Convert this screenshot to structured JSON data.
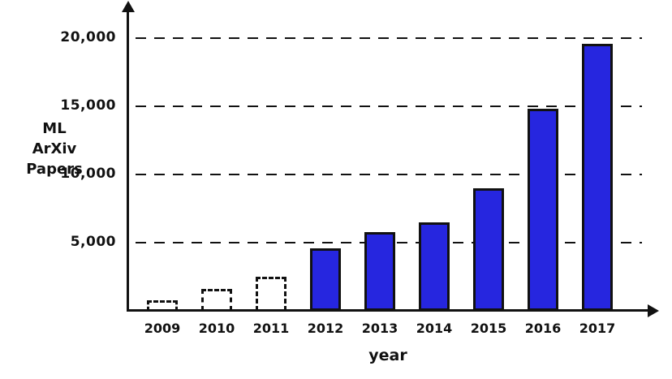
{
  "chart_data": {
    "type": "bar",
    "xlabel": "year",
    "ylabel": "ML ArXiv Papers",
    "ylabel_lines": [
      "ML",
      "ArXiv",
      "Papers"
    ],
    "categories": [
      "2009",
      "2010",
      "2011",
      "2012",
      "2013",
      "2014",
      "2015",
      "2016",
      "2017"
    ],
    "values": [
      800,
      1600,
      2500,
      4600,
      5800,
      6500,
      9000,
      14800,
      19600
    ],
    "bar_styles": [
      "dashed",
      "dashed",
      "dashed",
      "solid",
      "solid",
      "solid",
      "solid",
      "solid",
      "solid"
    ],
    "yticks": [
      {
        "label": "5,000",
        "value": 5000
      },
      {
        "label": "10,000",
        "value": 10000
      },
      {
        "label": "15,000",
        "value": 15000
      },
      {
        "label": "20,000",
        "value": 20000
      }
    ],
    "ylim": [
      0,
      21000
    ],
    "grid": "dashed-horizontal",
    "legend": "none",
    "colors": {
      "solid_bar_fill": "#2626df",
      "bar_border": "#111111",
      "axis": "#111111",
      "background": "#ffffff"
    }
  }
}
